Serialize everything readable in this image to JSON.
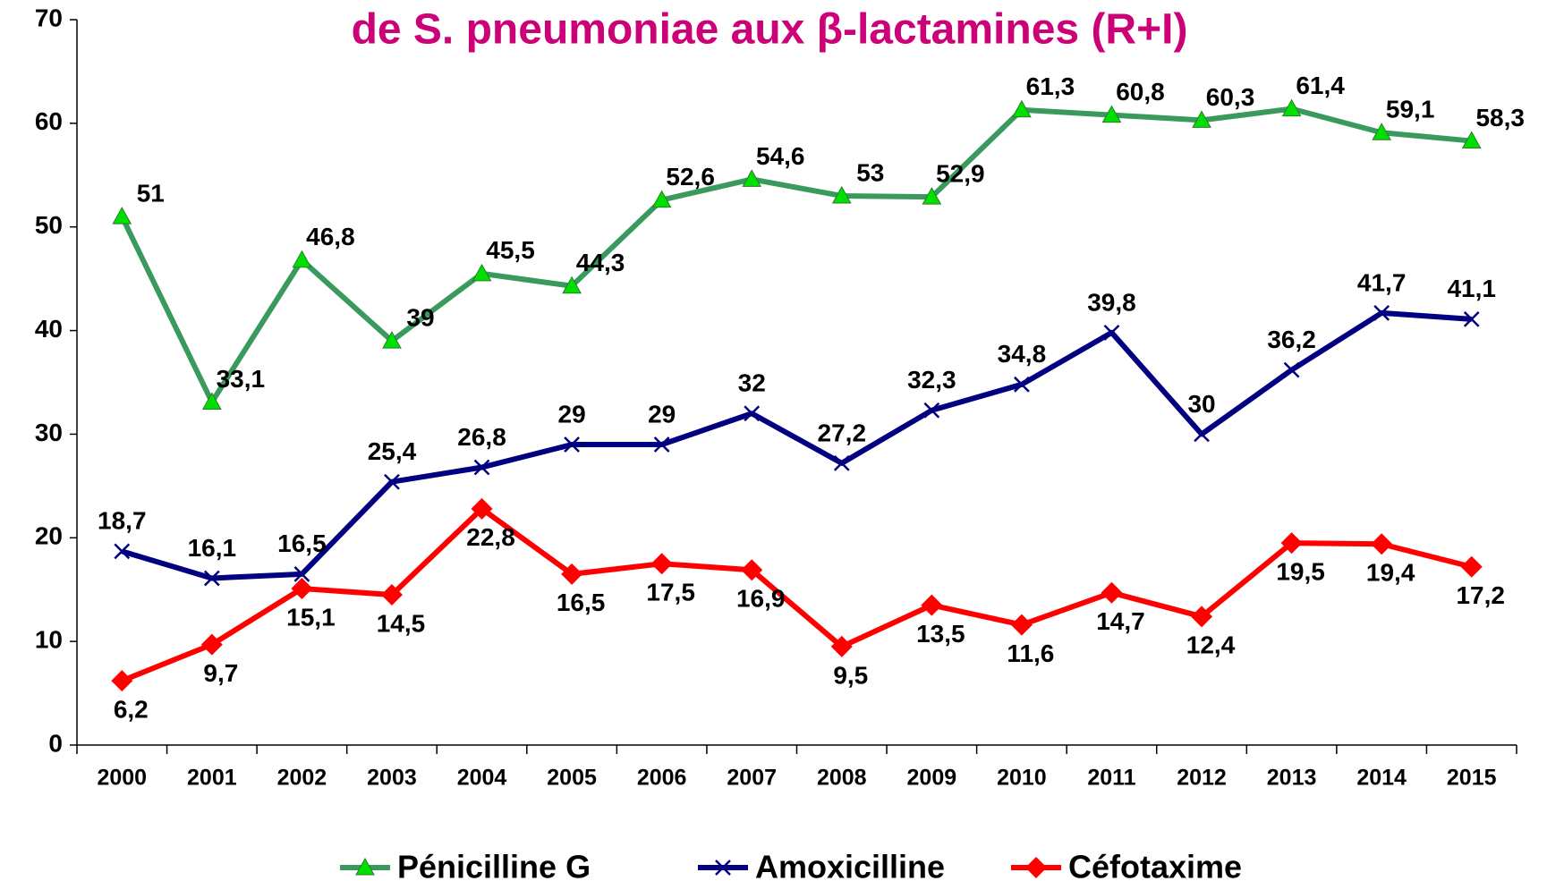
{
  "chart_data": {
    "type": "line",
    "title": "de S. pneumoniae aux β-lactamines (R+I)",
    "categories": [
      "2000",
      "2001",
      "2002",
      "2003",
      "2004",
      "2005",
      "2006",
      "2007",
      "2008",
      "2009",
      "2010",
      "2011",
      "2012",
      "2013",
      "2014",
      "2015"
    ],
    "series": [
      {
        "name": "Pénicilline G",
        "color": "#3a9a5e",
        "marker": "triangle",
        "marker_color": "#00e000",
        "values": [
          51,
          33.1,
          46.8,
          39,
          45.5,
          44.3,
          52.6,
          54.6,
          53,
          52.9,
          61.3,
          60.8,
          60.3,
          61.4,
          59.1,
          58.3
        ],
        "value_labels": [
          "51",
          "33,1",
          "46,8",
          "39",
          "45,5",
          "44,3",
          "52,6",
          "54,6",
          "53",
          "52,9",
          "61,3",
          "60,8",
          "60,3",
          "61,4",
          "59,1",
          "58,3"
        ]
      },
      {
        "name": "Amoxicilline",
        "color": "#000080",
        "marker": "x",
        "marker_color": "#000080",
        "values": [
          18.7,
          16.1,
          16.5,
          25.4,
          26.8,
          29,
          29,
          32,
          27.2,
          32.3,
          34.8,
          39.8,
          30,
          36.2,
          41.7,
          41.1
        ],
        "value_labels": [
          "18,7",
          "16,1",
          "16,5",
          "25,4",
          "26,8",
          "29",
          "29",
          "32",
          "27,2",
          "32,3",
          "34,8",
          "39,8",
          "30",
          "36,2",
          "41,7",
          "41,1"
        ]
      },
      {
        "name": "Céfotaxime",
        "color": "#ff0000",
        "marker": "diamond",
        "marker_color": "#ff0000",
        "values": [
          6.2,
          9.7,
          15.1,
          14.5,
          22.8,
          16.5,
          17.5,
          16.9,
          9.5,
          13.5,
          11.6,
          14.7,
          12.4,
          19.5,
          19.4,
          17.2
        ],
        "value_labels": [
          "6,2",
          "9,7",
          "15,1",
          "14,5",
          "22,8",
          "16,5",
          "17,5",
          "16,9",
          "9,5",
          "13,5",
          "11,6",
          "14,7",
          "12,4",
          "19,5",
          "19,4",
          "17,2"
        ]
      }
    ],
    "ylim": [
      0,
      70
    ],
    "yticks": [
      0,
      10,
      20,
      30,
      40,
      50,
      60,
      70
    ],
    "grid": false,
    "legend": "bottom"
  }
}
